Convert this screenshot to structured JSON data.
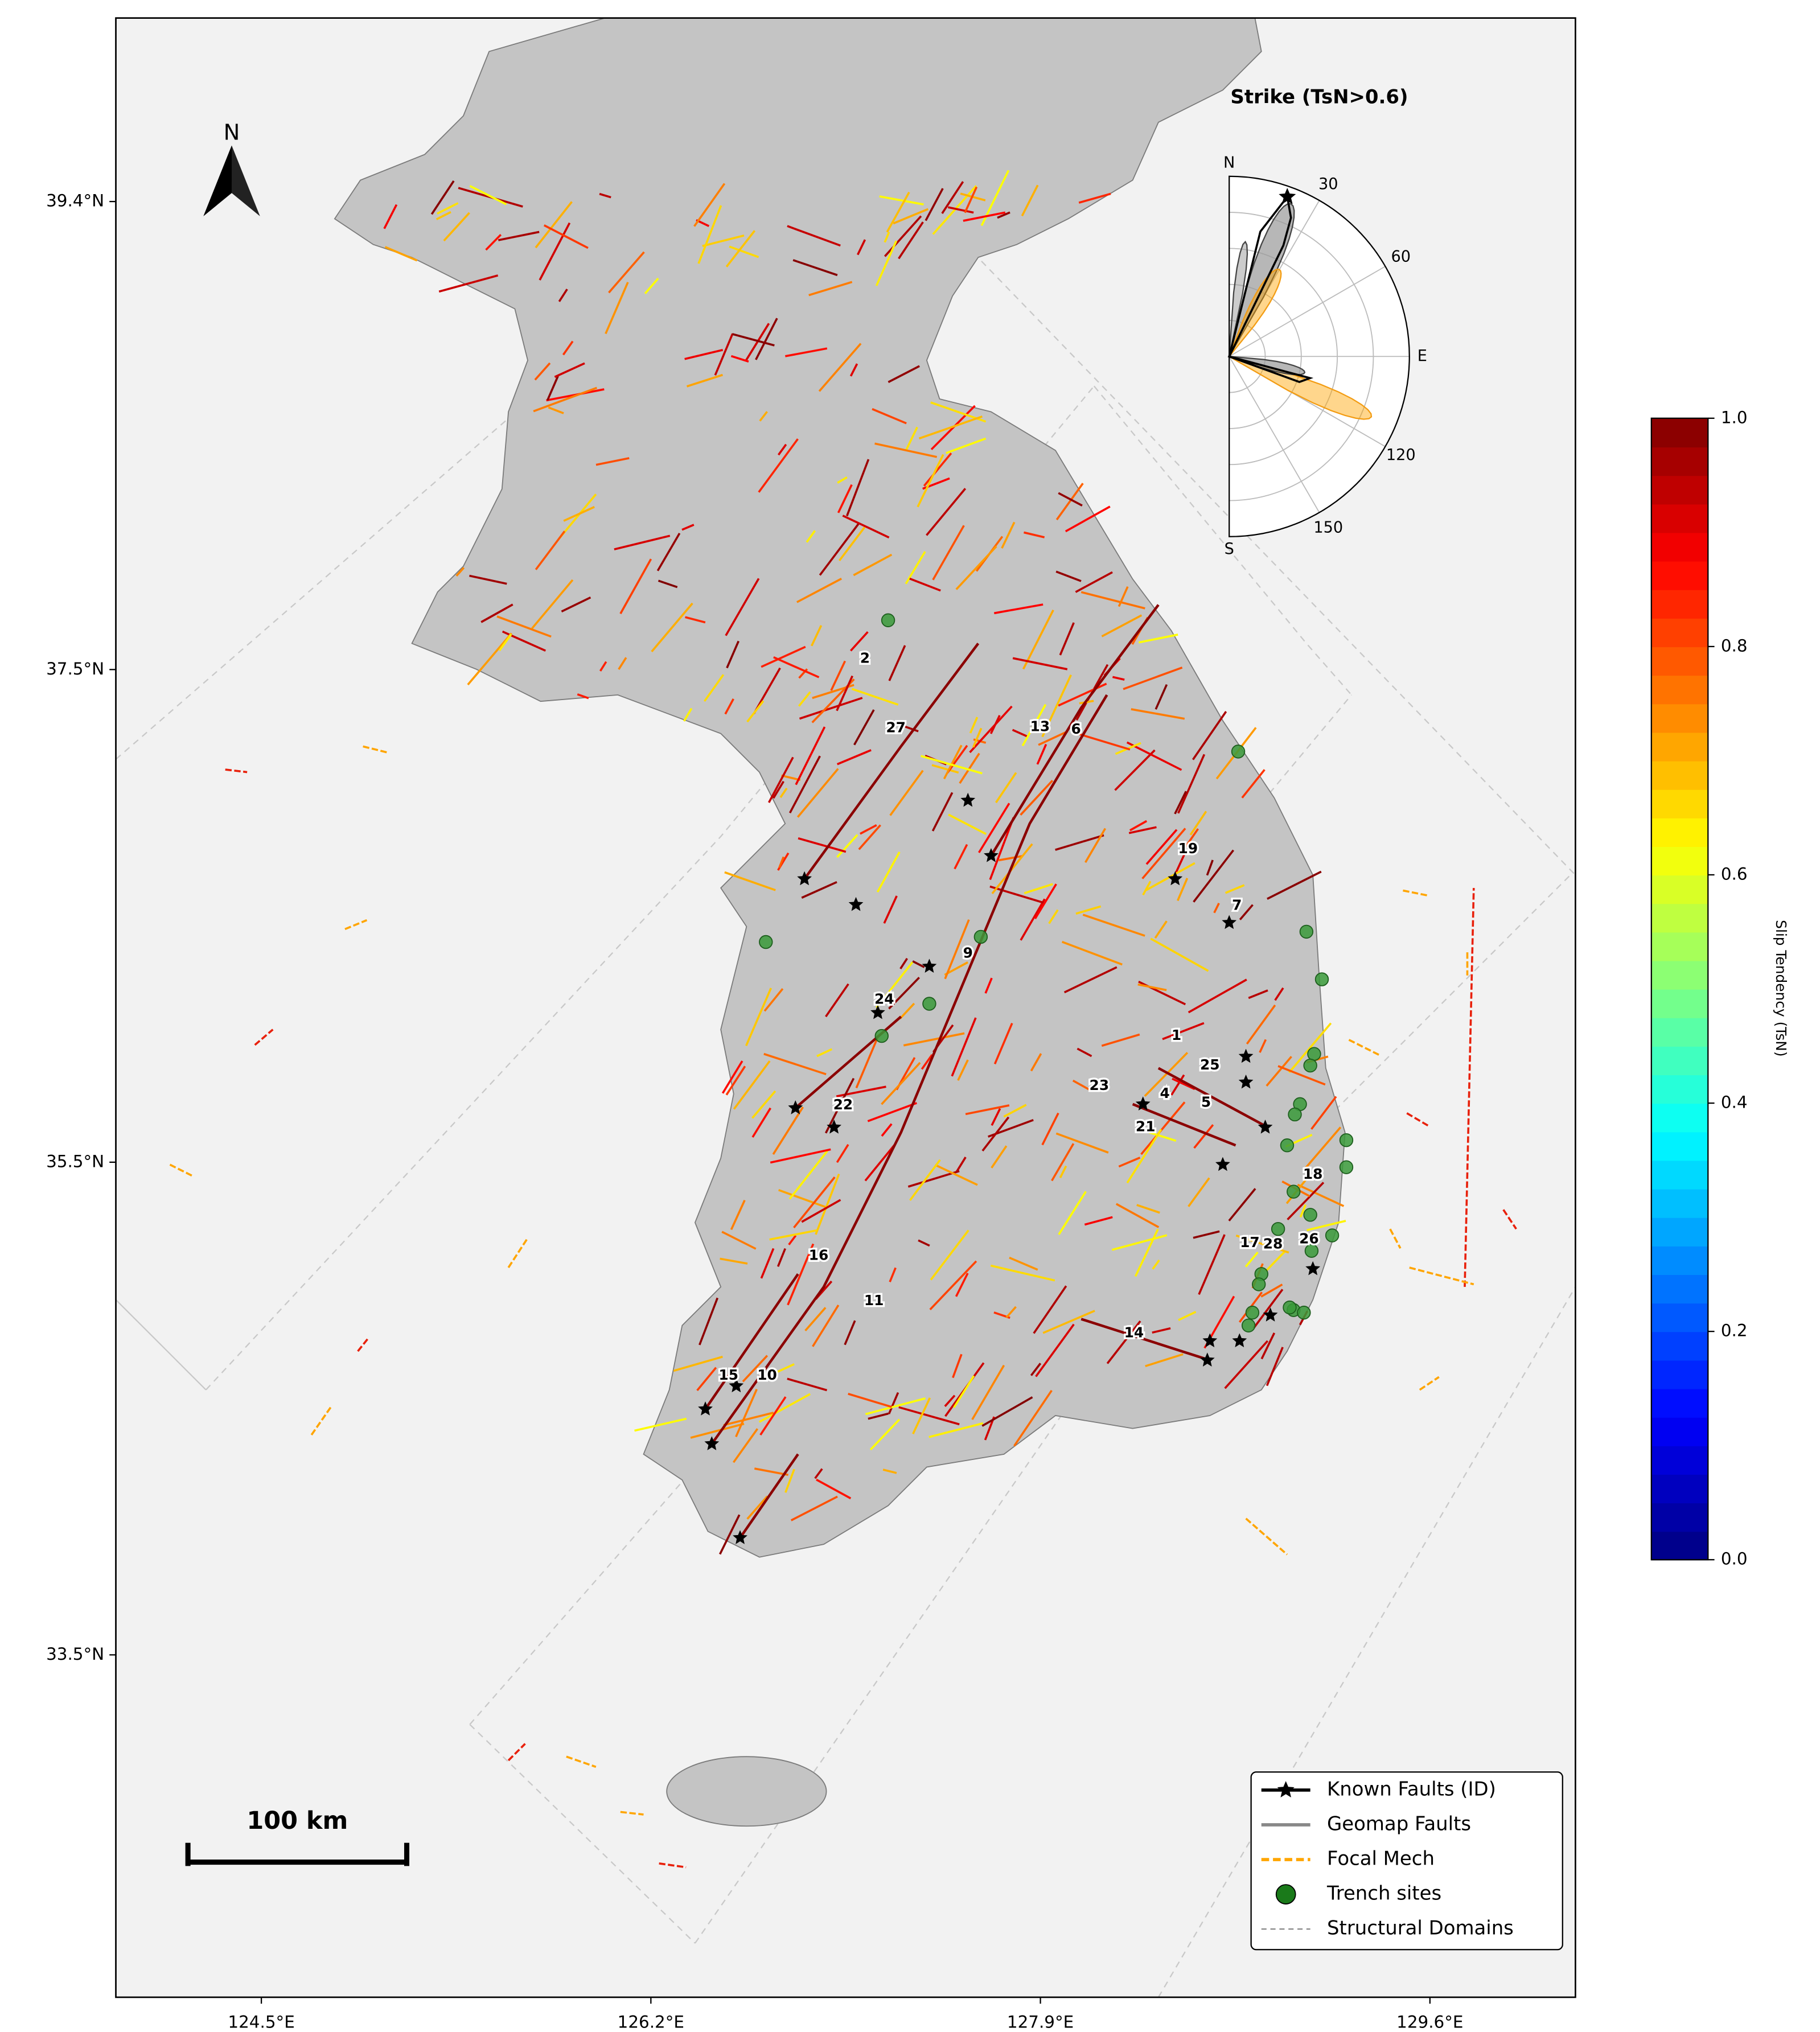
{
  "map": {
    "xlim": [
      123.865,
      130.235
    ],
    "ylim": [
      32.11,
      40.145
    ],
    "xticks": [
      {
        "value": 124.5,
        "label": "124.5°E"
      },
      {
        "value": 126.2,
        "label": "126.2°E"
      },
      {
        "value": 127.9,
        "label": "127.9°E"
      },
      {
        "value": 129.6,
        "label": "129.6°E"
      }
    ],
    "yticks": [
      {
        "value": 39.4,
        "label": "39.4°N"
      },
      {
        "value": 37.5,
        "label": "37.5°N"
      },
      {
        "value": 35.5,
        "label": "35.5°N"
      },
      {
        "value": 33.5,
        "label": "33.5°N"
      }
    ],
    "north_arrow": "N",
    "scale_bar": "100 km",
    "fault_labels": [
      "2",
      "27",
      "13",
      "6",
      "19",
      "7",
      "9",
      "24",
      "1",
      "25",
      "23",
      "4",
      "5",
      "21",
      "22",
      "18",
      "17",
      "28",
      "26",
      "16",
      "11",
      "14",
      "15",
      "10"
    ]
  },
  "inset": {
    "title": "Strike (TsN>0.6)",
    "direction_labels": [
      "N",
      "E",
      "S"
    ],
    "thetaticks": [
      30,
      60,
      120,
      150
    ]
  },
  "colorbar": {
    "label": "Slip Tendency (TsN)",
    "clim": [
      0,
      1
    ],
    "ticks": [
      {
        "value": 0,
        "label": "0.0"
      },
      0.2,
      0.4,
      0.6,
      0.8,
      {
        "value": 1,
        "label": "1.0"
      }
    ]
  },
  "legend": [
    "Known Faults (ID)",
    "Geomap Faults",
    "Focal Mech",
    "Trench sites",
    "Structural Domains"
  ]
}
